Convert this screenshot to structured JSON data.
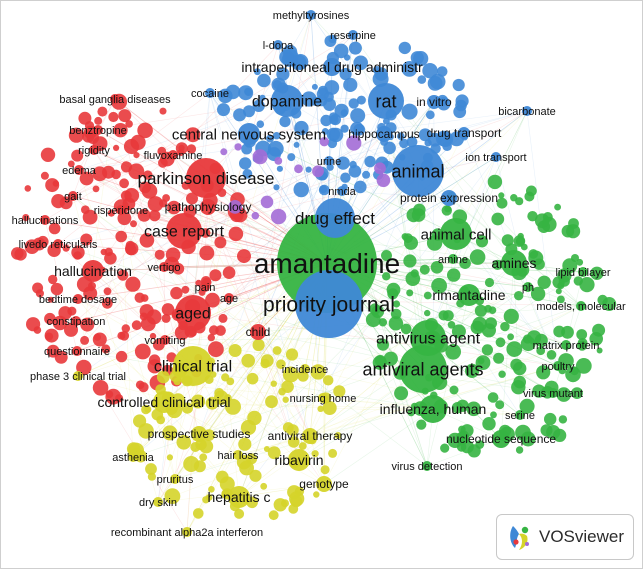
{
  "app": {
    "logo_text": "VOSviewer"
  },
  "clusters": {
    "red": {
      "color": "#e8393b"
    },
    "green": {
      "color": "#36b442"
    },
    "blue": {
      "color": "#3f88d6"
    },
    "yellow": {
      "color": "#d5d42a"
    },
    "purple": {
      "color": "#a36bd6"
    }
  },
  "terms": [
    {
      "label": "amantadine",
      "cluster": "green",
      "weight": 10
    },
    {
      "label": "priority journal",
      "cluster": "blue",
      "weight": 6
    },
    {
      "label": "drug effect",
      "cluster": "blue",
      "weight": 4
    },
    {
      "label": "animal",
      "cluster": "blue",
      "weight": 4
    },
    {
      "label": "rat",
      "cluster": "blue",
      "weight": 3.5
    },
    {
      "label": "dopamine",
      "cluster": "blue",
      "weight": 3.5
    },
    {
      "label": "intraperitoneal drug administr",
      "cluster": "blue",
      "weight": 3
    },
    {
      "label": "central nervous system",
      "cluster": "blue",
      "weight": 3
    },
    {
      "label": "hippocampus",
      "cluster": "blue",
      "weight": 2.5
    },
    {
      "label": "in vitro",
      "cluster": "blue",
      "weight": 2.5
    },
    {
      "label": "drug transport",
      "cluster": "blue",
      "weight": 2.5
    },
    {
      "label": "methyltyrosines",
      "cluster": "blue",
      "weight": 2
    },
    {
      "label": "reserpine",
      "cluster": "blue",
      "weight": 2
    },
    {
      "label": "l-dopa",
      "cluster": "blue",
      "weight": 2
    },
    {
      "label": "cocaine",
      "cluster": "blue",
      "weight": 2
    },
    {
      "label": "urine",
      "cluster": "blue",
      "weight": 2
    },
    {
      "label": "nmda",
      "cluster": "blue",
      "weight": 2
    },
    {
      "label": "bicarbonate",
      "cluster": "blue",
      "weight": 2
    },
    {
      "label": "ion transport",
      "cluster": "blue",
      "weight": 2
    },
    {
      "label": "protein expression",
      "cluster": "blue",
      "weight": 2.5
    },
    {
      "label": "parkinson disease",
      "cluster": "red",
      "weight": 4.5
    },
    {
      "label": "case report",
      "cluster": "red",
      "weight": 4
    },
    {
      "label": "aged",
      "cluster": "red",
      "weight": 4
    },
    {
      "label": "hallucination",
      "cluster": "red",
      "weight": 3
    },
    {
      "label": "pathophysiology",
      "cluster": "red",
      "weight": 2.5
    },
    {
      "label": "basal ganglia diseases",
      "cluster": "red",
      "weight": 2
    },
    {
      "label": "benztropine",
      "cluster": "red",
      "weight": 2
    },
    {
      "label": "rigidity",
      "cluster": "red",
      "weight": 2
    },
    {
      "label": "fluvoxamine",
      "cluster": "red",
      "weight": 2
    },
    {
      "label": "edema",
      "cluster": "red",
      "weight": 2
    },
    {
      "label": "gait",
      "cluster": "red",
      "weight": 2
    },
    {
      "label": "risperidone",
      "cluster": "red",
      "weight": 2
    },
    {
      "label": "hallucinations",
      "cluster": "red",
      "weight": 2
    },
    {
      "label": "livedo reticularis",
      "cluster": "red",
      "weight": 2
    },
    {
      "label": "vertigo",
      "cluster": "red",
      "weight": 2
    },
    {
      "label": "pain",
      "cluster": "red",
      "weight": 2
    },
    {
      "label": "age",
      "cluster": "red",
      "weight": 2
    },
    {
      "label": "bedtime dosage",
      "cluster": "red",
      "weight": 2
    },
    {
      "label": "constipation",
      "cluster": "red",
      "weight": 2
    },
    {
      "label": "questionnaire",
      "cluster": "red",
      "weight": 2
    },
    {
      "label": "vomiting",
      "cluster": "red",
      "weight": 2
    },
    {
      "label": "child",
      "cluster": "red",
      "weight": 2.5
    },
    {
      "label": "phase 3 clinical trial",
      "cluster": "yellow",
      "weight": 2
    },
    {
      "label": "clinical trial",
      "cluster": "yellow",
      "weight": 4
    },
    {
      "label": "controlled clinical trial",
      "cluster": "yellow",
      "weight": 3
    },
    {
      "label": "prospective studies",
      "cluster": "yellow",
      "weight": 2.5
    },
    {
      "label": "antiviral therapy",
      "cluster": "yellow",
      "weight": 2.5
    },
    {
      "label": "asthenia",
      "cluster": "yellow",
      "weight": 2
    },
    {
      "label": "hair loss",
      "cluster": "yellow",
      "weight": 2
    },
    {
      "label": "ribavirin",
      "cluster": "yellow",
      "weight": 3
    },
    {
      "label": "pruritus",
      "cluster": "yellow",
      "weight": 2
    },
    {
      "label": "genotype",
      "cluster": "yellow",
      "weight": 2.5
    },
    {
      "label": "dry skin",
      "cluster": "yellow",
      "weight": 2
    },
    {
      "label": "hepatitis c",
      "cluster": "yellow",
      "weight": 3
    },
    {
      "label": "recombinant alpha2a interferon",
      "cluster": "yellow",
      "weight": 2
    },
    {
      "label": "incidence",
      "cluster": "yellow",
      "weight": 2
    },
    {
      "label": "nursing home",
      "cluster": "yellow",
      "weight": 2
    },
    {
      "label": "animal cell",
      "cluster": "green",
      "weight": 3.5
    },
    {
      "label": "amines",
      "cluster": "green",
      "weight": 3
    },
    {
      "label": "amine",
      "cluster": "green",
      "weight": 2
    },
    {
      "label": "lipid bilayer",
      "cluster": "green",
      "weight": 2
    },
    {
      "label": "rimantadine",
      "cluster": "green",
      "weight": 3
    },
    {
      "label": "ph",
      "cluster": "green",
      "weight": 2
    },
    {
      "label": "models, molecular",
      "cluster": "green",
      "weight": 2
    },
    {
      "label": "antivirus agent",
      "cluster": "green",
      "weight": 4
    },
    {
      "label": "matrix protein",
      "cluster": "green",
      "weight": 2
    },
    {
      "label": "antiviral agents",
      "cluster": "green",
      "weight": 4.5
    },
    {
      "label": "poultry",
      "cluster": "green",
      "weight": 2
    },
    {
      "label": "virus mutant",
      "cluster": "green",
      "weight": 2
    },
    {
      "label": "influenza, human",
      "cluster": "green",
      "weight": 3
    },
    {
      "label": "serine",
      "cluster": "green",
      "weight": 2
    },
    {
      "label": "nucleotide sequence",
      "cluster": "green",
      "weight": 2.5
    },
    {
      "label": "virus detection",
      "cluster": "green",
      "weight": 2
    }
  ]
}
